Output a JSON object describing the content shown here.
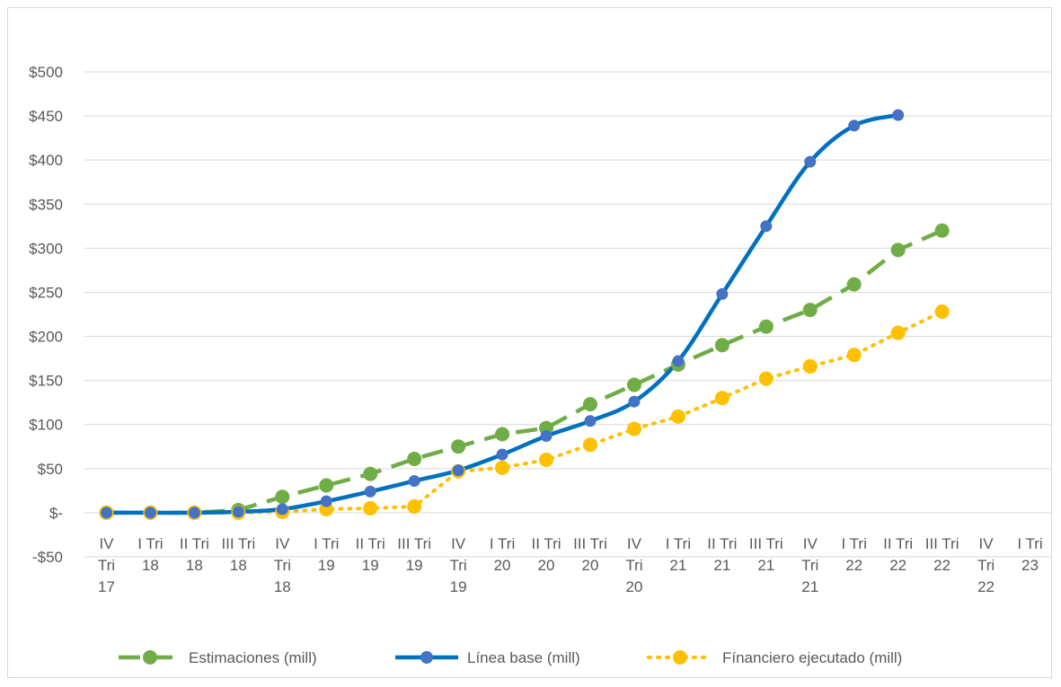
{
  "chart_data": {
    "type": "line",
    "title": "",
    "xlabel": "",
    "ylabel": "",
    "ylim": [
      -50,
      500
    ],
    "y_ticks": [
      -50,
      0,
      50,
      100,
      150,
      200,
      250,
      300,
      350,
      400,
      450,
      500
    ],
    "y_tick_labels": [
      "-$50",
      "$-",
      "$50",
      "$100",
      "$150",
      "$200",
      "$250",
      "$300",
      "$350",
      "$400",
      "$450",
      "$500"
    ],
    "grid": true,
    "legend_position": "bottom",
    "categories": [
      [
        "IV",
        "Tri",
        "17"
      ],
      [
        "I Tri",
        "18"
      ],
      [
        "II Tri",
        "18"
      ],
      [
        "III Tri",
        "18"
      ],
      [
        "IV",
        "Tri",
        "18"
      ],
      [
        "I Tri",
        "19"
      ],
      [
        "II Tri",
        "19"
      ],
      [
        "III Tri",
        "19"
      ],
      [
        "IV",
        "Tri",
        "19"
      ],
      [
        "I Tri",
        "20"
      ],
      [
        "II Tri",
        "20"
      ],
      [
        "III Tri",
        "20"
      ],
      [
        "IV",
        "Tri",
        "20"
      ],
      [
        "I Tri",
        "21"
      ],
      [
        "II Tri",
        "21"
      ],
      [
        "III Tri",
        "21"
      ],
      [
        "IV",
        "Tri",
        "21"
      ],
      [
        "I Tri",
        "22"
      ],
      [
        "II Tri",
        "22"
      ],
      [
        "III Tri",
        "22"
      ],
      [
        "IV",
        "Tri",
        "22"
      ],
      [
        "I Tri",
        "23"
      ]
    ],
    "series": [
      {
        "name": "Estimaciones (mill)",
        "color": "#70ad47",
        "style": "dashed",
        "values": [
          0,
          0,
          0,
          3,
          18,
          31,
          44,
          61,
          75,
          89,
          96,
          123,
          145,
          168,
          190,
          211,
          230,
          259,
          298,
          320,
          null,
          null
        ]
      },
      {
        "name": "Línea base (mill)",
        "color": "#0070c0",
        "marker_color": "#4472c4",
        "style": "solid",
        "values": [
          0,
          0,
          0,
          1,
          4,
          13,
          24,
          36,
          48,
          66,
          87,
          104,
          126,
          172,
          248,
          325,
          398,
          439,
          451,
          null,
          null,
          null
        ]
      },
      {
        "name": "Fínanciero ejecutado (mill)",
        "color": "#ffc000",
        "style": "dotted",
        "values": [
          0,
          0,
          0,
          0,
          1,
          4,
          5,
          7,
          47,
          51,
          60,
          77,
          95,
          109,
          130,
          152,
          166,
          179,
          204,
          228,
          null,
          null
        ]
      }
    ]
  }
}
